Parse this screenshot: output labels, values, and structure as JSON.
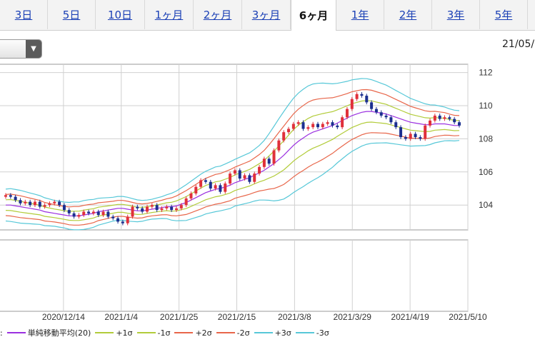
{
  "tabs": [
    {
      "label": "3日",
      "active": false
    },
    {
      "label": "5日",
      "active": false
    },
    {
      "label": "10日",
      "active": false
    },
    {
      "label": "1ヶ月",
      "active": false
    },
    {
      "label": "2ヶ月",
      "active": false
    },
    {
      "label": "3ヶ月",
      "active": false
    },
    {
      "label": "6ヶ月",
      "active": true
    },
    {
      "label": "1年",
      "active": false
    },
    {
      "label": "2年",
      "active": false
    },
    {
      "label": "3年",
      "active": false
    },
    {
      "label": "5年",
      "active": false
    }
  ],
  "date_top": "21/05/",
  "legend": {
    "prefix": ":",
    "items": [
      {
        "label": "単純移動平均(20)",
        "color": "#9b30e0"
      },
      {
        "label": "+1σ",
        "color": "#b2cc3a"
      },
      {
        "label": "-1σ",
        "color": "#b2cc3a"
      },
      {
        "label": "+2σ",
        "color": "#e8664a"
      },
      {
        "label": "-2σ",
        "color": "#e8664a"
      },
      {
        "label": "+3σ",
        "color": "#57c8d8"
      },
      {
        "label": "-3σ",
        "color": "#57c8d8"
      }
    ]
  },
  "chart_data": {
    "type": "candlestick",
    "y_ticks": [
      112,
      110,
      108,
      106,
      104
    ],
    "ylim": [
      102.5,
      112.5
    ],
    "x_ticks": [
      {
        "date": "2020/12/14",
        "label": "2020/12/14"
      },
      {
        "date": "2021/1/4",
        "label": "2021/1/4"
      },
      {
        "date": "2021/1/25",
        "label": "2021/1/25"
      },
      {
        "date": "2021/2/15",
        "label": "2021/2/15"
      },
      {
        "date": "2021/3/8",
        "label": "2021/3/8"
      },
      {
        "date": "2021/3/29",
        "label": "2021/3/29"
      },
      {
        "date": "2021/4/19",
        "label": "2021/4/19"
      },
      {
        "date": "2021/5/10",
        "label": "2021/5/10"
      }
    ],
    "x_range": [
      "2020/11/23",
      "2021/5/10"
    ],
    "colors": {
      "up": "#e0303a",
      "down": "#1b2f8f",
      "ma": "#9b30e0",
      "s1": "#b2cc3a",
      "s2": "#e8664a",
      "s3": "#57c8d8"
    },
    "series": {
      "close": [
        104.6,
        104.5,
        104.3,
        104.1,
        104.2,
        104.0,
        104.2,
        103.9,
        104.0,
        104.1,
        104.2,
        104.0,
        103.7,
        103.5,
        103.3,
        103.4,
        103.6,
        103.5,
        103.6,
        103.4,
        103.6,
        103.3,
        103.2,
        103.0,
        102.9,
        103.3,
        103.9,
        103.8,
        103.6,
        103.9,
        104.0,
        103.7,
        103.8,
        103.9,
        103.7,
        103.8,
        104.0,
        104.4,
        104.7,
        105.1,
        105.5,
        105.4,
        105.0,
        105.2,
        104.8,
        105.3,
        105.9,
        106.1,
        105.6,
        105.8,
        105.4,
        105.9,
        106.3,
        106.8,
        106.5,
        107.3,
        107.9,
        108.4,
        108.6,
        108.9,
        109.0,
        108.6,
        108.7,
        108.9,
        108.7,
        108.9,
        109.0,
        108.8,
        108.7,
        109.3,
        109.8,
        110.4,
        110.7,
        110.6,
        110.2,
        109.8,
        109.6,
        109.4,
        109.3,
        109.0,
        108.7,
        108.1,
        108.0,
        108.3,
        108.1,
        108.0,
        108.8,
        109.1,
        109.4,
        109.2,
        109.3,
        109.2,
        109.0,
        108.8
      ],
      "ma": [
        104.0,
        104.0,
        103.95,
        103.9,
        103.85,
        103.8,
        103.75,
        103.7,
        103.6,
        103.55,
        103.5,
        103.45,
        103.4,
        103.35,
        103.35,
        103.35,
        103.4,
        103.45,
        103.5,
        103.6,
        103.65,
        103.7,
        103.75,
        103.8,
        103.8,
        103.75,
        103.7,
        103.65,
        103.65,
        103.7,
        103.75,
        103.8,
        103.85,
        103.9,
        103.9,
        103.95,
        104.05,
        104.15,
        104.3,
        104.45,
        104.6,
        104.75,
        104.85,
        104.95,
        105.0,
        105.1,
        105.2,
        105.35,
        105.45,
        105.55,
        105.65,
        105.8,
        105.95,
        106.1,
        106.3,
        106.5,
        106.75,
        107.0,
        107.3,
        107.6,
        107.85,
        108.05,
        108.25,
        108.4,
        108.5,
        108.6,
        108.7,
        108.8,
        108.95,
        109.1,
        109.25,
        109.4,
        109.5,
        109.6,
        109.65,
        109.65,
        109.6,
        109.55,
        109.5,
        109.4,
        109.3,
        109.2,
        109.1,
        109.0,
        108.95,
        108.9,
        108.85,
        108.85,
        108.9,
        108.9,
        108.9,
        108.85,
        108.8,
        108.8
      ],
      "sd": [
        0.32,
        0.33,
        0.33,
        0.33,
        0.32,
        0.31,
        0.3,
        0.29,
        0.28,
        0.27,
        0.26,
        0.26,
        0.26,
        0.27,
        0.28,
        0.28,
        0.29,
        0.29,
        0.28,
        0.27,
        0.26,
        0.25,
        0.24,
        0.24,
        0.24,
        0.24,
        0.23,
        0.22,
        0.21,
        0.2,
        0.2,
        0.21,
        0.22,
        0.24,
        0.27,
        0.3,
        0.33,
        0.36,
        0.38,
        0.4,
        0.42,
        0.43,
        0.44,
        0.45,
        0.45,
        0.46,
        0.47,
        0.47,
        0.48,
        0.49,
        0.5,
        0.52,
        0.55,
        0.6,
        0.67,
        0.75,
        0.82,
        0.88,
        0.92,
        0.95,
        0.97,
        0.98,
        0.98,
        0.97,
        0.95,
        0.92,
        0.88,
        0.84,
        0.8,
        0.77,
        0.74,
        0.72,
        0.7,
        0.68,
        0.66,
        0.64,
        0.62,
        0.6,
        0.58,
        0.56,
        0.54,
        0.52,
        0.5,
        0.48,
        0.46,
        0.44,
        0.42,
        0.4,
        0.38,
        0.36,
        0.34,
        0.32,
        0.31,
        0.3
      ]
    }
  }
}
